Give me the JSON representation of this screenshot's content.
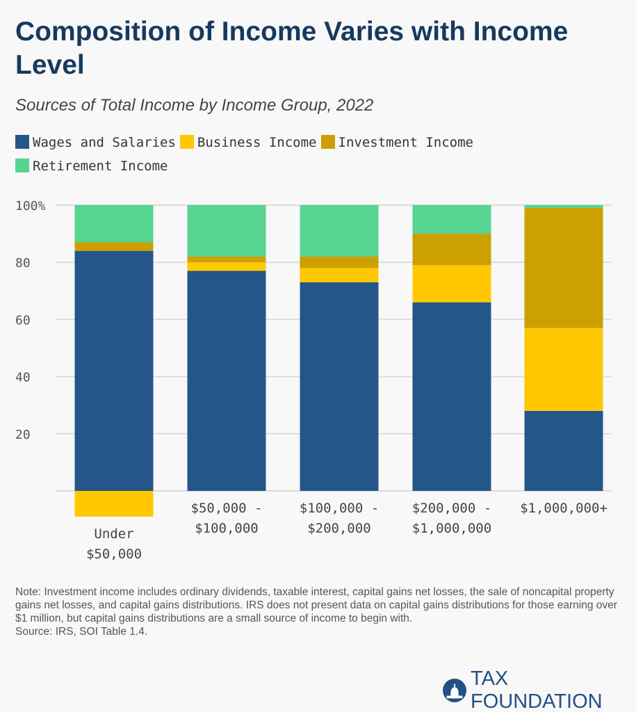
{
  "title": "Composition of Income Varies with Income Level",
  "subtitle": "Sources of Total Income by Income Group, 2022",
  "note": "Note: Investment income includes ordinary dividends, taxable interest, capital gains net losses, the sale of noncapital property gains net losses, and capital gains distributions. IRS does not present data on capital gains distributions for those earning over $1 million, but capital gains distributions are a small source of income to begin with.",
  "source": "Source: IRS, SOI Table 1.4.",
  "logo": "TAX FOUNDATION",
  "chart_data": {
    "type": "bar",
    "stacked": true,
    "categories": [
      [
        "Under",
        "$50,000"
      ],
      [
        "$50,000 -",
        "$100,000"
      ],
      [
        "$100,000 -",
        "$200,000"
      ],
      [
        "$200,000 -",
        "$1,000,000"
      ],
      [
        "$1,000,000+"
      ]
    ],
    "series": [
      {
        "name": "Wages and Salaries",
        "color": "#24568a",
        "values": [
          84,
          77,
          73,
          66,
          28
        ]
      },
      {
        "name": "Business Income",
        "color": "#ffc800",
        "values": [
          -9,
          3,
          5,
          13,
          29
        ]
      },
      {
        "name": "Investment Income",
        "color": "#cba000",
        "values": [
          3,
          2,
          4,
          11,
          42
        ]
      },
      {
        "name": "Retirement Income",
        "color": "#56d490",
        "values": [
          13,
          18,
          18,
          10,
          1
        ]
      }
    ],
    "yticks": [
      20,
      40,
      60,
      80,
      100
    ],
    "ytick_labels": [
      "20",
      "40",
      "60",
      "80",
      "100%"
    ],
    "ylim": [
      -10,
      100
    ],
    "grid": true,
    "legend": "top"
  }
}
